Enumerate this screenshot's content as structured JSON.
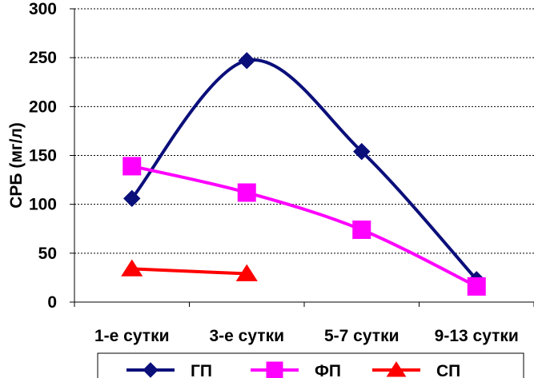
{
  "chart_data": {
    "type": "line",
    "title": "",
    "xlabel": "",
    "ylabel": "СРБ (мг/л)",
    "categories": [
      "1-е сутки",
      "3-е сутки",
      "5-7 сутки",
      "9-13 сутки"
    ],
    "ylim": [
      0,
      300
    ],
    "yticks": [
      0,
      50,
      100,
      150,
      200,
      250,
      300
    ],
    "grid": "horizontal dashed",
    "legend_position": "bottom",
    "series": [
      {
        "name": "ГП",
        "values": [
          106,
          247,
          154,
          23
        ],
        "color": "#0b0f7a",
        "marker": "diamond",
        "smooth": true
      },
      {
        "name": "ФП",
        "values": [
          139,
          112,
          74,
          16
        ],
        "color": "#ff00ff",
        "marker": "square",
        "smooth": true
      },
      {
        "name": "СП",
        "values": [
          34,
          29,
          null,
          null
        ],
        "color": "#ff0000",
        "marker": "triangle",
        "smooth": false
      }
    ]
  }
}
